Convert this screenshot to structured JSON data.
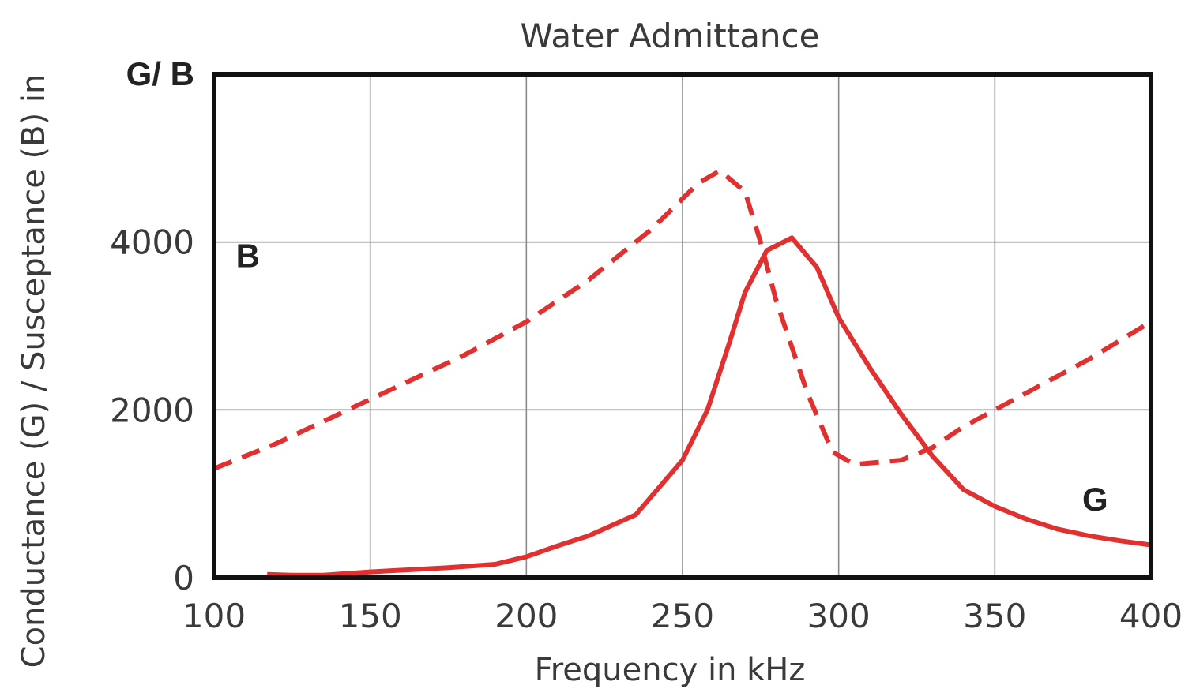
{
  "chart_data": {
    "type": "line",
    "title": "Water Admittance",
    "xlabel": "Frequency in kHz",
    "ylabel": "Conductance (G) / Susceptance (B) in",
    "y_corner_label": "G/ B",
    "xlim": [
      100,
      400
    ],
    "ylim": [
      0,
      6000
    ],
    "xticks": [
      100,
      150,
      200,
      250,
      300,
      350,
      400
    ],
    "yticks": [
      0,
      2000,
      4000
    ],
    "grid": true,
    "line_color": "#e03030",
    "series": [
      {
        "name": "B",
        "style": "dashed",
        "label_at": [
          107,
          3700
        ],
        "points": [
          [
            100,
            1300
          ],
          [
            120,
            1600
          ],
          [
            140,
            1950
          ],
          [
            160,
            2300
          ],
          [
            180,
            2650
          ],
          [
            200,
            3050
          ],
          [
            220,
            3550
          ],
          [
            240,
            4150
          ],
          [
            255,
            4700
          ],
          [
            262,
            4850
          ],
          [
            270,
            4600
          ],
          [
            275,
            4000
          ],
          [
            280,
            3300
          ],
          [
            290,
            2200
          ],
          [
            298,
            1500
          ],
          [
            305,
            1350
          ],
          [
            320,
            1400
          ],
          [
            330,
            1550
          ],
          [
            340,
            1800
          ],
          [
            360,
            2200
          ],
          [
            380,
            2600
          ],
          [
            400,
            3050
          ]
        ]
      },
      {
        "name": "G",
        "style": "solid",
        "label_at": [
          378,
          800
        ],
        "points": [
          [
            117,
            40
          ],
          [
            125,
            30
          ],
          [
            135,
            30
          ],
          [
            150,
            70
          ],
          [
            175,
            120
          ],
          [
            190,
            160
          ],
          [
            200,
            250
          ],
          [
            210,
            380
          ],
          [
            220,
            500
          ],
          [
            235,
            750
          ],
          [
            250,
            1400
          ],
          [
            258,
            2000
          ],
          [
            265,
            2800
          ],
          [
            270,
            3400
          ],
          [
            277,
            3900
          ],
          [
            285,
            4050
          ],
          [
            293,
            3700
          ],
          [
            300,
            3100
          ],
          [
            310,
            2500
          ],
          [
            320,
            1950
          ],
          [
            330,
            1450
          ],
          [
            340,
            1050
          ],
          [
            350,
            850
          ],
          [
            360,
            700
          ],
          [
            370,
            580
          ],
          [
            380,
            500
          ],
          [
            390,
            440
          ],
          [
            400,
            390
          ]
        ]
      }
    ]
  }
}
